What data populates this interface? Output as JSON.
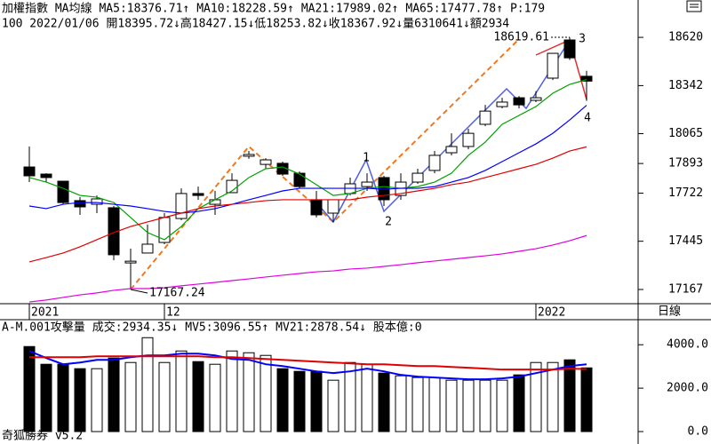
{
  "chart_data": [
    {
      "type": "candlestick",
      "title": "加權指數 MA均線",
      "extra_label": "P:179",
      "info": "100 2022/01/06 開18395.72↓高18427.15↓低18253.82↓收18367.92↓量6310641↓額2934",
      "period": "日線",
      "categories": [
        "2021",
        null,
        null,
        null,
        null,
        null,
        null,
        null,
        "12",
        null,
        null,
        null,
        null,
        null,
        null,
        null,
        null,
        null,
        null,
        null,
        null,
        null,
        null,
        null,
        null,
        null,
        null,
        null,
        null,
        null,
        "2022",
        null,
        null,
        null
      ],
      "open": [
        17873,
        17832,
        17791,
        17679,
        17658,
        17638,
        17320,
        17377,
        17438,
        17576,
        17720,
        17658,
        17725,
        17935,
        17888,
        17894,
        17837,
        17684,
        17607,
        17720,
        17760,
        17812,
        17709,
        17786,
        17853,
        17955,
        17991,
        18119,
        18221,
        18272,
        18257,
        18385,
        18605,
        18395.72
      ],
      "high": [
        17991,
        17837,
        17791,
        17699,
        17709,
        17648,
        17402,
        17541,
        17607,
        17750,
        17760,
        17735,
        17837,
        17965,
        17924,
        17904,
        17847,
        17735,
        17684,
        17812,
        17837,
        17822,
        17837,
        17863,
        17965,
        18067,
        18093,
        18231,
        18272,
        18282,
        18310,
        18528,
        18619.61,
        18427.15
      ],
      "low": [
        17786,
        17786,
        17658,
        17597,
        17607,
        17336,
        17167.24,
        17377,
        17428,
        17566,
        17684,
        17597,
        17725,
        17920,
        17863,
        17822,
        17750,
        17582,
        17556,
        17709,
        17735,
        17648,
        17684,
        17776,
        17837,
        17940,
        17975,
        18108,
        18211,
        18211,
        18247,
        18374,
        18490,
        18253.82
      ],
      "close": [
        17822,
        17812,
        17668,
        17643,
        17689,
        17367,
        17330,
        17428,
        17582,
        17720,
        17709,
        17684,
        17796,
        17945,
        17914,
        17832,
        17760,
        17597,
        17684,
        17776,
        17786,
        17684,
        17786,
        17837,
        17940,
        17991,
        18067,
        18195,
        18247,
        18231,
        18272,
        18528,
        18502,
        18367.92
      ],
      "up_color": "#ffffff",
      "down_color": "#000000",
      "series": [
        {
          "name": "MA5:18376.71↑",
          "color": "#00a000",
          "values": [
            17812,
            17786,
            17750,
            17709,
            17699,
            17668,
            17582,
            17495,
            17454,
            17530,
            17633,
            17684,
            17735,
            17812,
            17863,
            17873,
            17832,
            17771,
            17709,
            17720,
            17750,
            17760,
            17750,
            17760,
            17786,
            17837,
            17940,
            18016,
            18119,
            18170,
            18221,
            18298,
            18349,
            18376.71
          ]
        },
        {
          "name": "MA10:18228.59↑",
          "color": "#0000ff",
          "values": [
            17648,
            17633,
            17658,
            17668,
            17668,
            17658,
            17648,
            17633,
            17617,
            17607,
            17617,
            17633,
            17658,
            17684,
            17709,
            17735,
            17750,
            17750,
            17750,
            17750,
            17750,
            17745,
            17750,
            17750,
            17760,
            17786,
            17812,
            17853,
            17904,
            17955,
            18006,
            18067,
            18144,
            18228.59
          ]
        },
        {
          "name": "MA21:17989.02↑",
          "color": "#e00000",
          "values": [
            17326,
            17351,
            17377,
            17413,
            17454,
            17495,
            17530,
            17556,
            17582,
            17607,
            17633,
            17648,
            17658,
            17668,
            17679,
            17684,
            17684,
            17684,
            17684,
            17684,
            17699,
            17709,
            17720,
            17735,
            17750,
            17771,
            17786,
            17812,
            17837,
            17863,
            17888,
            17924,
            17965,
            17989.02
          ]
        },
        {
          "name": "MA65:17477.78↑",
          "color": "#e000e0",
          "values": [
            17095,
            17106,
            17121,
            17136,
            17147,
            17162,
            17172,
            17172,
            17177,
            17188,
            17198,
            17208,
            17218,
            17228,
            17239,
            17249,
            17259,
            17269,
            17274,
            17285,
            17290,
            17300,
            17310,
            17321,
            17331,
            17341,
            17351,
            17361,
            17372,
            17387,
            17402,
            17423,
            17448,
            17477.78
          ]
        }
      ],
      "annotations": [
        "18619.61",
        "17167.24",
        "1",
        "2",
        "3",
        "4"
      ],
      "ylim": [
        17085,
        18733
      ],
      "yticks": [
        18620,
        18342,
        18065,
        17893,
        17722,
        17445,
        17167
      ]
    },
    {
      "type": "bar",
      "title": "A-M.001攻擊量",
      "extra_label": "股本億:0",
      "series": [
        {
          "name": "成交:2934.35↓",
          "color": "#008000",
          "values": [
            3917,
            3101,
            3101,
            2897,
            2897,
            3386,
            3182,
            4325,
            3182,
            3713,
            3223,
            3101,
            3713,
            3631,
            3509,
            2897,
            2774,
            2774,
            2366,
            3182,
            3101,
            2693,
            2570,
            2489,
            2489,
            2366,
            2366,
            2366,
            2366,
            2611,
            3182,
            3182,
            3305,
            2934.35
          ]
        },
        {
          "name": "MV5:3096.55↑",
          "color": "#0000ff",
          "values": [
            3713,
            3386,
            3101,
            3182,
            3305,
            3305,
            3427,
            3509,
            3509,
            3590,
            3590,
            3509,
            3346,
            3305,
            3101,
            3019,
            2897,
            2774,
            2693,
            2774,
            2897,
            2774,
            2611,
            2530,
            2489,
            2448,
            2407,
            2407,
            2448,
            2530,
            2693,
            2856,
            3019,
            3096.55
          ]
        },
        {
          "name": "MV21:2878.54↓",
          "color": "#e00000",
          "values": [
            3427,
            3427,
            3427,
            3427,
            3468,
            3468,
            3468,
            3468,
            3468,
            3468,
            3468,
            3427,
            3427,
            3386,
            3346,
            3305,
            3264,
            3223,
            3182,
            3142,
            3101,
            3101,
            3060,
            3019,
            3019,
            2978,
            2938,
            2897,
            2856,
            2856,
            2856,
            2856,
            2897,
            2878.54
          ]
        }
      ],
      "ylim": [
        0,
        4500
      ],
      "yticks": [
        {
          "value": 4000,
          "label": "4000.0"
        },
        {
          "value": 2000,
          "label": "2000.0"
        },
        {
          "value": 0,
          "label": "0.0"
        }
      ]
    }
  ],
  "footer": "奇狐勝券 v5.2"
}
